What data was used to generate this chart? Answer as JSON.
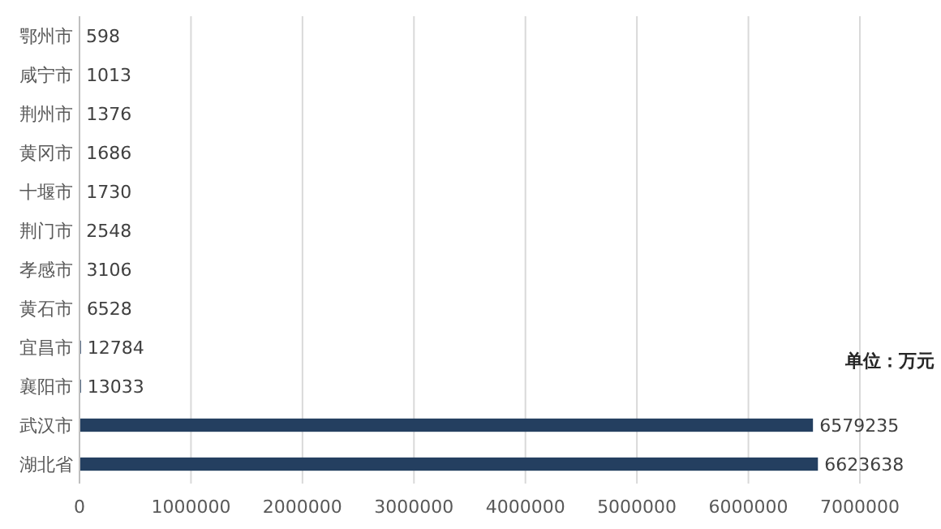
{
  "chart_data": {
    "type": "bar",
    "orientation": "horizontal",
    "categories": [
      "鄂州市",
      "咸宁市",
      "荆州市",
      "黄冈市",
      "十堰市",
      "荆门市",
      "孝感市",
      "黄石市",
      "宜昌市",
      "襄阳市",
      "武汉市",
      "湖北省"
    ],
    "values": [
      598,
      1013,
      1376,
      1686,
      1730,
      2548,
      3106,
      6528,
      12784,
      13033,
      6579235,
      6623638
    ],
    "color": "#243f60",
    "xlim": [
      0,
      7000000
    ],
    "xticks": [
      0,
      1000000,
      2000000,
      3000000,
      4000000,
      5000000,
      6000000,
      7000000
    ],
    "grid": "x",
    "data_labels": true,
    "annotations": [
      "单位：万元"
    ]
  }
}
